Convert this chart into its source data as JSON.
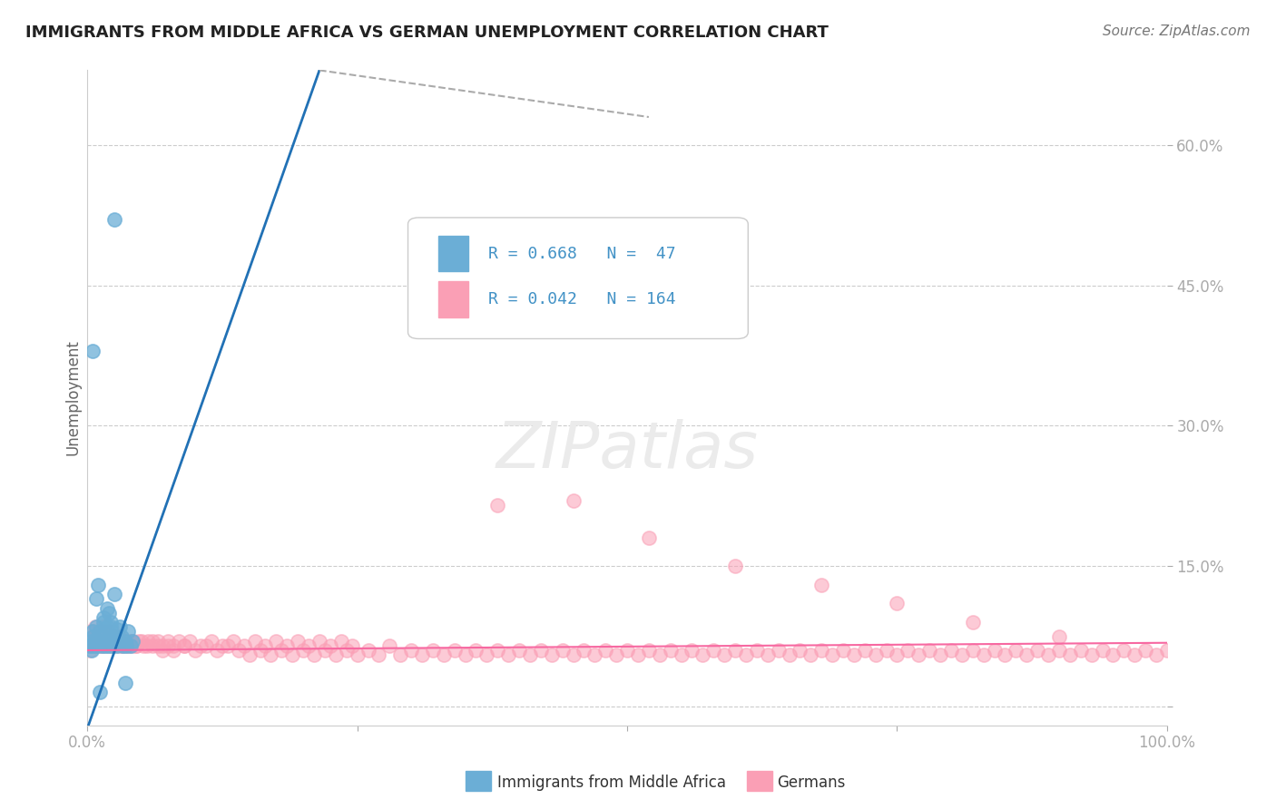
{
  "title": "IMMIGRANTS FROM MIDDLE AFRICA VS GERMAN UNEMPLOYMENT CORRELATION CHART",
  "source": "Source: ZipAtlas.com",
  "ylabel": "Unemployment",
  "xlim": [
    0,
    1.0
  ],
  "ylim": [
    -0.02,
    0.68
  ],
  "ytick_positions": [
    0.0,
    0.15,
    0.3,
    0.45,
    0.6
  ],
  "color_blue": "#6baed6",
  "color_pink": "#fa9fb5",
  "color_blue_line": "#2171b5",
  "color_pink_line": "#f768a1",
  "color_text_blue": "#4292c6",
  "background": "#ffffff",
  "blue_points_x": [
    0.002,
    0.003,
    0.004,
    0.005,
    0.005,
    0.006,
    0.007,
    0.008,
    0.009,
    0.01,
    0.011,
    0.012,
    0.013,
    0.014,
    0.015,
    0.016,
    0.017,
    0.018,
    0.019,
    0.02,
    0.021,
    0.022,
    0.023,
    0.025,
    0.027,
    0.028,
    0.03,
    0.032,
    0.033,
    0.035,
    0.036,
    0.038,
    0.04,
    0.042,
    0.005,
    0.012,
    0.02,
    0.025,
    0.03,
    0.035,
    0.008,
    0.015,
    0.022,
    0.028,
    0.01,
    0.018,
    0.025
  ],
  "blue_points_y": [
    0.065,
    0.07,
    0.06,
    0.08,
    0.075,
    0.065,
    0.07,
    0.085,
    0.065,
    0.075,
    0.07,
    0.08,
    0.065,
    0.07,
    0.09,
    0.075,
    0.065,
    0.085,
    0.07,
    0.065,
    0.075,
    0.085,
    0.065,
    0.07,
    0.075,
    0.065,
    0.07,
    0.075,
    0.065,
    0.07,
    0.065,
    0.08,
    0.065,
    0.07,
    0.38,
    0.015,
    0.1,
    0.12,
    0.085,
    0.025,
    0.115,
    0.095,
    0.09,
    0.082,
    0.13,
    0.105,
    0.52
  ],
  "pink_points_x": [
    0.001,
    0.002,
    0.003,
    0.004,
    0.005,
    0.006,
    0.007,
    0.008,
    0.009,
    0.01,
    0.011,
    0.012,
    0.013,
    0.014,
    0.015,
    0.016,
    0.017,
    0.018,
    0.019,
    0.02,
    0.022,
    0.025,
    0.028,
    0.03,
    0.032,
    0.035,
    0.038,
    0.04,
    0.045,
    0.05,
    0.055,
    0.06,
    0.065,
    0.07,
    0.075,
    0.08,
    0.09,
    0.1,
    0.11,
    0.12,
    0.13,
    0.14,
    0.15,
    0.16,
    0.17,
    0.18,
    0.19,
    0.2,
    0.21,
    0.22,
    0.23,
    0.24,
    0.25,
    0.26,
    0.27,
    0.28,
    0.29,
    0.3,
    0.31,
    0.32,
    0.33,
    0.34,
    0.35,
    0.36,
    0.37,
    0.38,
    0.39,
    0.4,
    0.41,
    0.42,
    0.43,
    0.44,
    0.45,
    0.46,
    0.47,
    0.48,
    0.49,
    0.5,
    0.51,
    0.52,
    0.53,
    0.54,
    0.55,
    0.56,
    0.57,
    0.58,
    0.59,
    0.6,
    0.61,
    0.62,
    0.63,
    0.64,
    0.65,
    0.66,
    0.67,
    0.68,
    0.69,
    0.7,
    0.71,
    0.72,
    0.73,
    0.74,
    0.75,
    0.76,
    0.77,
    0.78,
    0.79,
    0.8,
    0.81,
    0.82,
    0.83,
    0.84,
    0.85,
    0.86,
    0.87,
    0.88,
    0.89,
    0.9,
    0.91,
    0.92,
    0.93,
    0.94,
    0.95,
    0.96,
    0.97,
    0.98,
    0.99,
    1.0,
    0.003,
    0.005,
    0.007,
    0.009,
    0.011,
    0.013,
    0.015,
    0.017,
    0.019,
    0.021,
    0.023,
    0.025,
    0.027,
    0.029,
    0.031,
    0.033,
    0.035,
    0.037,
    0.039,
    0.041,
    0.043,
    0.045,
    0.048,
    0.052,
    0.056,
    0.06,
    0.065,
    0.07,
    0.075,
    0.08,
    0.085,
    0.09,
    0.095,
    0.105,
    0.115,
    0.125,
    0.135,
    0.145,
    0.155,
    0.165,
    0.175,
    0.185,
    0.195,
    0.205,
    0.215,
    0.225,
    0.235,
    0.245,
    0.38,
    0.45,
    0.52,
    0.6,
    0.68,
    0.75,
    0.82,
    0.9
  ],
  "pink_points_y": [
    0.065,
    0.06,
    0.07,
    0.065,
    0.08,
    0.075,
    0.065,
    0.07,
    0.065,
    0.075,
    0.07,
    0.065,
    0.075,
    0.065,
    0.08,
    0.065,
    0.07,
    0.075,
    0.065,
    0.07,
    0.065,
    0.07,
    0.065,
    0.075,
    0.065,
    0.07,
    0.065,
    0.07,
    0.065,
    0.07,
    0.065,
    0.07,
    0.065,
    0.06,
    0.065,
    0.06,
    0.065,
    0.06,
    0.065,
    0.06,
    0.065,
    0.06,
    0.055,
    0.06,
    0.055,
    0.06,
    0.055,
    0.06,
    0.055,
    0.06,
    0.055,
    0.06,
    0.055,
    0.06,
    0.055,
    0.065,
    0.055,
    0.06,
    0.055,
    0.06,
    0.055,
    0.06,
    0.055,
    0.06,
    0.055,
    0.06,
    0.055,
    0.06,
    0.055,
    0.06,
    0.055,
    0.06,
    0.055,
    0.06,
    0.055,
    0.06,
    0.055,
    0.06,
    0.055,
    0.06,
    0.055,
    0.06,
    0.055,
    0.06,
    0.055,
    0.06,
    0.055,
    0.06,
    0.055,
    0.06,
    0.055,
    0.06,
    0.055,
    0.06,
    0.055,
    0.06,
    0.055,
    0.06,
    0.055,
    0.06,
    0.055,
    0.06,
    0.055,
    0.06,
    0.055,
    0.06,
    0.055,
    0.06,
    0.055,
    0.06,
    0.055,
    0.06,
    0.055,
    0.06,
    0.055,
    0.06,
    0.055,
    0.06,
    0.055,
    0.06,
    0.055,
    0.06,
    0.055,
    0.06,
    0.055,
    0.06,
    0.055,
    0.06,
    0.08,
    0.075,
    0.085,
    0.075,
    0.08,
    0.075,
    0.085,
    0.075,
    0.08,
    0.075,
    0.08,
    0.075,
    0.07,
    0.075,
    0.07,
    0.065,
    0.07,
    0.065,
    0.07,
    0.065,
    0.07,
    0.065,
    0.07,
    0.065,
    0.07,
    0.065,
    0.07,
    0.065,
    0.07,
    0.065,
    0.07,
    0.065,
    0.07,
    0.065,
    0.07,
    0.065,
    0.07,
    0.065,
    0.07,
    0.065,
    0.07,
    0.065,
    0.07,
    0.065,
    0.07,
    0.065,
    0.07,
    0.065,
    0.215,
    0.22,
    0.18,
    0.15,
    0.13,
    0.11,
    0.09,
    0.075
  ]
}
